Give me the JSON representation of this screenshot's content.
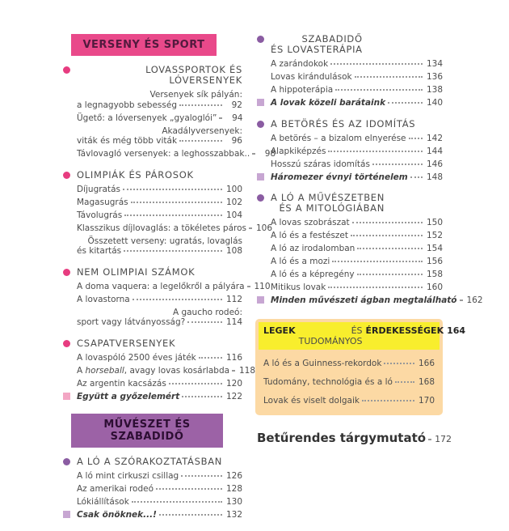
{
  "colors": {
    "banner_pink": "#e9498a",
    "banner_purple": "#9c62a6",
    "bullet_pink": "#e73c80",
    "bullet_purple": "#8a5ca2",
    "square_pink": "#f3a6c4",
    "square_purple": "#c7a6d2",
    "box_yellow": "#f8ee2d",
    "box_peach": "#fcd9a4",
    "body_text": "#4c4c4c"
  },
  "left": {
    "chapters": [
      {
        "type": "banner",
        "theme": "pink",
        "label": "VERSENY ÉS SPORT"
      },
      {
        "type": "section",
        "theme": "pink",
        "title_lines": [
          "LOVASSPORTOK ÉS LÓVERSENYEK"
        ],
        "entries": [
          {
            "lines": [
              "Versenyek sík pályán:",
              "a legnagyobb sebesség"
            ],
            "page": "92"
          },
          {
            "lines": [
              "Ügető: a lóversenyek „gyaloglói”"
            ],
            "page": "94"
          },
          {
            "lines": [
              "Akadályversenyek:",
              "viták és még több viták"
            ],
            "page": "96"
          },
          {
            "lines": [
              "Távlovagló versenyek: a leghosszabbak.."
            ],
            "page": "98"
          }
        ]
      },
      {
        "type": "section",
        "theme": "pink",
        "title_lines": [
          "OLIMPIÁK ÉS PÁROSOK"
        ],
        "entries": [
          {
            "lines": [
              "Díjugratás"
            ],
            "page": "100"
          },
          {
            "lines": [
              "Magasugrás"
            ],
            "page": "102"
          },
          {
            "lines": [
              "Távolugrás"
            ],
            "page": "104"
          },
          {
            "lines": [
              "Klasszikus díjlovaglás: a tökéletes páros"
            ],
            "page": "106"
          },
          {
            "lines": [
              "Összetett verseny: ugratás, lovaglás",
              "és kitartás"
            ],
            "page": "108"
          }
        ]
      },
      {
        "type": "section",
        "theme": "pink",
        "title_lines": [
          "NEM OLIMPIAI SZÁMOK"
        ],
        "entries": [
          {
            "lines": [
              "A doma vaquera: a legelőkről a pályára"
            ],
            "page": "110"
          },
          {
            "lines": [
              "A lovastorna"
            ],
            "page": "112"
          },
          {
            "lines": [
              "A gaucho rodeó:",
              "sport vagy látványosság?"
            ],
            "page": "114"
          }
        ]
      },
      {
        "type": "section",
        "theme": "pink",
        "title_lines": [
          "CSAPATVERSENYEK"
        ],
        "entries": [
          {
            "lines": [
              "A lovaspóló 2500 éves játék"
            ],
            "page": "116"
          },
          {
            "parts": [
              {
                "text": "A "
              },
              {
                "text": "horseball",
                "italic": true
              },
              {
                "text": ", avagy lovas kosárlabda"
              }
            ],
            "page": "118"
          },
          {
            "lines": [
              "Az argentin kacsázás"
            ],
            "page": "120"
          },
          {
            "lines": [
              "Együtt a győzelemért"
            ],
            "page": "122",
            "marker": "square",
            "emph": true
          }
        ]
      },
      {
        "type": "banner",
        "theme": "purple",
        "label": "MŰVÉSZET ÉS SZABADIDŐ"
      },
      {
        "type": "section",
        "theme": "purple",
        "title_lines": [
          "A LÓ A SZÓRAKOZTATÁSBAN"
        ],
        "entries": [
          {
            "lines": [
              "A ló mint cirkuszi csillag"
            ],
            "page": "126"
          },
          {
            "lines": [
              "Az amerikai rodeó"
            ],
            "page": "128"
          },
          {
            "lines": [
              "Lókiállítások"
            ],
            "page": "130"
          },
          {
            "lines": [
              "Csak önöknek...!"
            ],
            "page": "132",
            "marker": "square",
            "emph": true
          }
        ]
      }
    ]
  },
  "right": {
    "chapters": [
      {
        "type": "section",
        "theme": "purple",
        "title_lines": [
          "SZABADIDŐ",
          "ÉS LOVASTERÁPIA"
        ],
        "entries": [
          {
            "lines": [
              "A zarándokok"
            ],
            "page": "134"
          },
          {
            "lines": [
              "Lovas kirándulások"
            ],
            "page": "136"
          },
          {
            "lines": [
              "A hippoterápia"
            ],
            "page": "138"
          },
          {
            "lines": [
              "A lovak közeli barátaink"
            ],
            "page": "140",
            "marker": "square",
            "emph": true
          }
        ]
      },
      {
        "type": "section",
        "theme": "purple",
        "title_lines": [
          "A BETÖRÉS ÉS AZ IDOMÍTÁS"
        ],
        "entries": [
          {
            "lines": [
              "A betörés – a bizalom elnyerése"
            ],
            "page": "142"
          },
          {
            "lines": [
              "Alapkiképzés"
            ],
            "page": "144"
          },
          {
            "lines": [
              "Hosszú száras idomítás"
            ],
            "page": "146"
          },
          {
            "lines": [
              "Háromezer évnyi történelem"
            ],
            "page": "148",
            "marker": "square",
            "emph": true
          }
        ]
      },
      {
        "type": "section",
        "theme": "purple",
        "title_lines": [
          "A LÓ A MŰVÉSZETBEN",
          "ÉS A MITOLÓGIÁBAN"
        ],
        "entries": [
          {
            "lines": [
              "A lovas szobrászat"
            ],
            "page": "150"
          },
          {
            "lines": [
              "A ló és a festészet"
            ],
            "page": "152"
          },
          {
            "lines": [
              "A ló az irodalomban"
            ],
            "page": "154"
          },
          {
            "lines": [
              "A ló és a mozi"
            ],
            "page": "156"
          },
          {
            "lines": [
              "A ló és a képregény"
            ],
            "page": "158"
          },
          {
            "lines": [
              "Mitikus lovak"
            ],
            "page": "160"
          },
          {
            "lines": [
              "Minden művészeti ágban megtalálható"
            ],
            "page": "162",
            "marker": "square",
            "emph": true
          }
        ]
      }
    ],
    "box": {
      "header_parts": [
        {
          "text": "LEGEK",
          "bold": true
        },
        {
          "text": "ÉS TUDOMÁNYOS",
          "bold": false
        },
        {
          "text": "ÉRDEKESSÉGEK",
          "bold": true
        }
      ],
      "page": "164",
      "entries": [
        {
          "lines": [
            "A ló és a Guinness-rekordok"
          ],
          "page": "166"
        },
        {
          "lines": [
            "Tudomány, technológia és a ló"
          ],
          "page": "168"
        },
        {
          "lines": [
            "Lovak és viselt dolgaik"
          ],
          "page": "170"
        }
      ]
    },
    "footer": {
      "label": "Betűrendes tárgymutató",
      "page": "172"
    }
  }
}
